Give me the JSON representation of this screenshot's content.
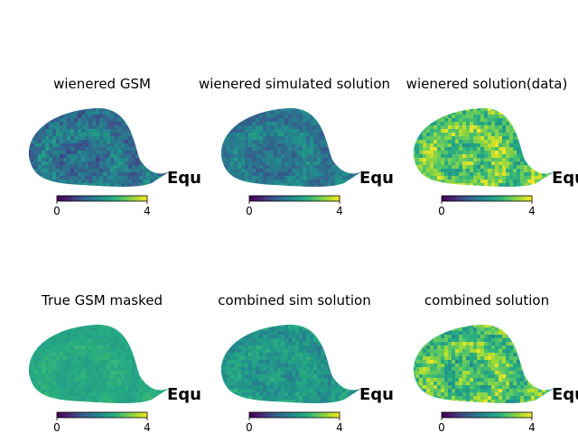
{
  "chart_data": [
    {
      "type": "heatmap",
      "title": "wienered GSM",
      "coord_label": "Equ",
      "colormap": "viridis",
      "clim": [
        0,
        4
      ],
      "colorbar_ticks": [
        "0",
        "4"
      ],
      "projection": "partial sky map (masked)",
      "colors": {
        "low": "#440154",
        "mid": "#21918c",
        "high": "#fde725"
      },
      "level_mean": 1.55,
      "level_spread": 0.55
    },
    {
      "type": "heatmap",
      "title": "wienered simulated solution",
      "coord_label": "Equ",
      "colormap": "viridis",
      "clim": [
        0,
        4
      ],
      "colorbar_ticks": [
        "0",
        "4"
      ],
      "projection": "partial sky map (masked)",
      "colors": {
        "low": "#440154",
        "mid": "#21918c",
        "high": "#fde725"
      },
      "level_mean": 1.65,
      "level_spread": 0.45
    },
    {
      "type": "heatmap",
      "title": "wienered solution(data)",
      "coord_label": "Equ",
      "colormap": "viridis",
      "clim": [
        0,
        4
      ],
      "colorbar_ticks": [
        "0",
        "4"
      ],
      "projection": "partial sky map (masked)",
      "colors": {
        "low": "#440154",
        "mid": "#21918c",
        "high": "#fde725"
      },
      "level_mean": 3.0,
      "level_spread": 0.8
    },
    {
      "type": "heatmap",
      "title": "True GSM masked",
      "coord_label": "Equ",
      "colormap": "viridis",
      "clim": [
        0,
        4
      ],
      "colorbar_ticks": [
        "0",
        "4"
      ],
      "projection": "partial sky map (masked)",
      "colors": {
        "low": "#440154",
        "mid": "#21918c",
        "high": "#fde725"
      },
      "level_mean": 2.45,
      "level_spread": 0.2
    },
    {
      "type": "heatmap",
      "title": "combined sim solution",
      "coord_label": "Equ",
      "colormap": "viridis",
      "clim": [
        0,
        4
      ],
      "colorbar_ticks": [
        "0",
        "4"
      ],
      "projection": "partial sky map (masked)",
      "colors": {
        "low": "#440154",
        "mid": "#21918c",
        "high": "#fde725"
      },
      "level_mean": 2.15,
      "level_spread": 0.4
    },
    {
      "type": "heatmap",
      "title": "combined solution",
      "coord_label": "Equ",
      "colormap": "viridis",
      "clim": [
        0,
        4
      ],
      "colorbar_ticks": [
        "0",
        "4"
      ],
      "projection": "partial sky map (masked)",
      "colors": {
        "low": "#440154",
        "mid": "#21918c",
        "high": "#fde725"
      },
      "level_mean": 2.9,
      "level_spread": 0.8
    }
  ]
}
